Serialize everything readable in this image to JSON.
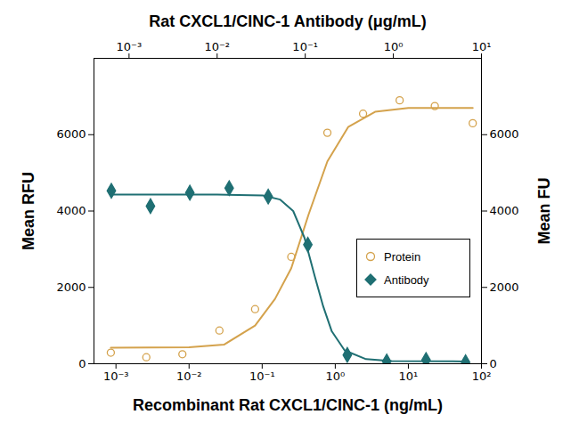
{
  "chart_data": {
    "type": "scatter",
    "xlabel": "Recombinant Rat CXCL1/CINC-1 (ng/mL)",
    "x2label": "Rat CXCL1/CINC-1 Antibody (μg/mL)",
    "ylabel": "Mean RFU",
    "y2label": "Mean FU",
    "log": "x",
    "xlim": [
      0.0005,
      100
    ],
    "xticks": [
      {
        "value": 0.001,
        "label": "10⁻³"
      },
      {
        "value": 0.01,
        "label": "10⁻²"
      },
      {
        "value": 0.1,
        "label": "10⁻¹"
      },
      {
        "value": 1,
        "label": "10⁰"
      },
      {
        "value": 10,
        "label": "10¹"
      },
      {
        "value": 100,
        "label": "10²"
      }
    ],
    "x2lim": [
      0.0004,
      10
    ],
    "x2ticks": [
      {
        "value": 0.001,
        "label": "10⁻³"
      },
      {
        "value": 0.01,
        "label": "10⁻²"
      },
      {
        "value": 0.1,
        "label": "10⁻¹"
      },
      {
        "value": 1,
        "label": "10⁰"
      },
      {
        "value": 10,
        "label": "10¹"
      }
    ],
    "ylim": [
      0,
      8000
    ],
    "yticks": [
      0,
      2000,
      4000,
      6000
    ],
    "y2lim": [
      0,
      8000
    ],
    "y2ticks": [
      0,
      2000,
      4000,
      6000
    ],
    "legend": "right",
    "grid": false,
    "series": [
      {
        "name": "Protein",
        "color": "#d4a24c",
        "marker": "circle",
        "line_style": "solid",
        "x": [
          0.00085,
          0.0026,
          0.0081,
          0.026,
          0.08,
          0.25,
          0.78,
          2.4,
          7.6,
          23,
          76
        ],
        "values": [
          290,
          170,
          250,
          870,
          1430,
          2800,
          6050,
          6550,
          6900,
          6750,
          6300
        ],
        "fit_x": [
          0.00085,
          0.01,
          0.03,
          0.08,
          0.15,
          0.25,
          0.43,
          0.78,
          1.5,
          3.5,
          10,
          76
        ],
        "fit_values": [
          420,
          430,
          500,
          1000,
          1700,
          2500,
          3900,
          5300,
          6200,
          6600,
          6700,
          6700
        ]
      },
      {
        "name": "Antibody",
        "color": "#1f6f73",
        "marker": "diamond",
        "line_style": "solid",
        "axis": "x2",
        "x": [
          0.00063,
          0.00175,
          0.0049,
          0.0137,
          0.038,
          0.107,
          0.3,
          0.84,
          2.35,
          6.6
        ],
        "values": [
          4530,
          4130,
          4480,
          4600,
          4380,
          3120,
          230,
          60,
          100,
          40
        ],
        "fit_x": [
          0.00063,
          0.01,
          0.033,
          0.052,
          0.073,
          0.098,
          0.128,
          0.16,
          0.2,
          0.28,
          0.49,
          0.96,
          6.6
        ],
        "fit_values": [
          4430,
          4430,
          4410,
          4300,
          4000,
          3300,
          2300,
          1500,
          850,
          350,
          120,
          70,
          60
        ]
      }
    ]
  }
}
